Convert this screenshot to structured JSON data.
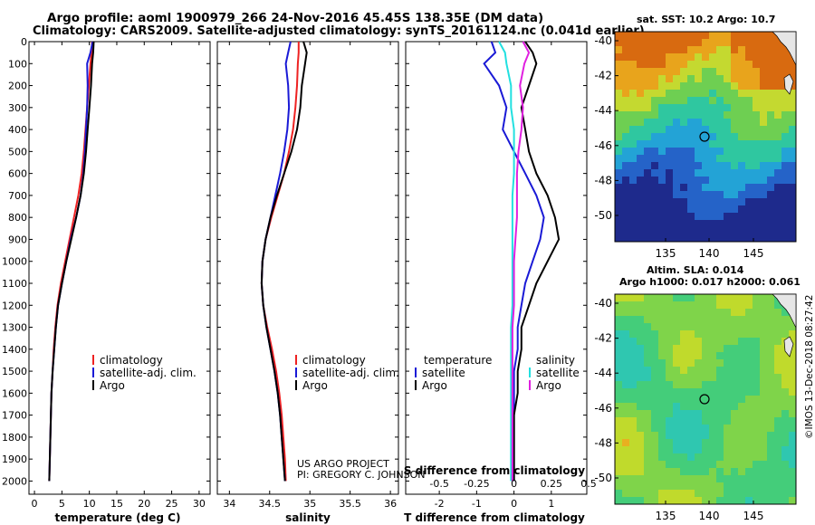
{
  "header": {
    "line1": "Argo profile: aoml 1900979_266 24-Nov-2016 45.45S 138.35E (DM data)",
    "line2": "Climatology: CARS2009. Satellite-adjusted climatology: synTS_20161124.nc (0.041d earlier)"
  },
  "maps": {
    "sst_title": "sat. SST: 10.2 Argo: 10.7",
    "sla_title1": "Altim. SLA: 0.014",
    "sla_title2": "Argo h1000: 0.017 h2000: 0.061",
    "side_credit": "©IMOS 13-Dec-2018 08:27:42",
    "lon_ticks": [
      "135",
      "140",
      "145"
    ],
    "lat_ticks": [
      "-40",
      "-42",
      "-44",
      "-46",
      "-48",
      "-50"
    ],
    "sst_ramp": [
      "#1e2a8c",
      "#2563c8",
      "#23a3d6",
      "#2fc7a0",
      "#6ecf52",
      "#c4d930",
      "#e8a41c",
      "#d86a10"
    ],
    "sla_ramp": [
      "#2fc7b0",
      "#44cd7a",
      "#7fd44a",
      "#c0da2c",
      "#e8b020",
      "#e06818"
    ]
  },
  "credits": {
    "line1": "US ARGO PROJECT",
    "line2": "PI: GREGORY C. JOHNSON"
  },
  "colors": {
    "climatology": "#ee2222",
    "satellite": "#1a1ad6",
    "argo": "#000000",
    "sal_satellite": "#22e0e0",
    "sal_argo": "#e020e0"
  },
  "chart_data": [
    {
      "type": "line",
      "id": "temperature",
      "xlabel": "temperature (deg C)",
      "ylabel": "",
      "xlim": [
        -1,
        32
      ],
      "ylim": [
        2060,
        0
      ],
      "xticks": [
        "0",
        "5",
        "10",
        "15",
        "20",
        "25",
        "30"
      ],
      "yticks": [
        "0",
        "100",
        "200",
        "300",
        "400",
        "500",
        "600",
        "700",
        "800",
        "900",
        "1000",
        "1100",
        "1200",
        "1300",
        "1400",
        "1500",
        "1600",
        "1700",
        "1800",
        "1900",
        "2000"
      ],
      "legend": [
        "climatology",
        "satellite-adj. clim.",
        "Argo"
      ],
      "depth": [
        0,
        50,
        100,
        200,
        300,
        400,
        500,
        600,
        700,
        800,
        900,
        1000,
        1100,
        1200,
        1300,
        1400,
        1500,
        1600,
        1700,
        1800,
        1900,
        2000
      ],
      "series": [
        {
          "name": "climatology",
          "values": [
            10.5,
            10.4,
            10.2,
            9.9,
            9.6,
            9.3,
            9.0,
            8.6,
            8.0,
            7.2,
            6.4,
            5.6,
            4.8,
            4.2,
            3.8,
            3.5,
            3.3,
            3.1,
            3.0,
            2.9,
            2.8,
            2.7
          ]
        },
        {
          "name": "satellite-adj. clim.",
          "values": [
            10.6,
            10.2,
            9.6,
            9.7,
            9.6,
            9.4,
            9.2,
            8.9,
            8.4,
            7.6,
            6.6,
            5.8,
            5.0,
            4.3,
            3.9,
            3.6,
            3.3,
            3.1,
            3.0,
            2.9,
            2.8,
            2.7
          ]
        },
        {
          "name": "Argo",
          "values": [
            10.8,
            10.7,
            10.5,
            10.3,
            10.0,
            9.7,
            9.4,
            9.0,
            8.4,
            7.6,
            6.7,
            5.8,
            5.0,
            4.3,
            3.9,
            3.6,
            3.3,
            3.1,
            3.0,
            2.9,
            2.8,
            2.7
          ]
        }
      ]
    },
    {
      "type": "line",
      "id": "salinity",
      "xlabel": "salinity",
      "ylabel": "",
      "xlim": [
        33.85,
        36.1
      ],
      "ylim": [
        2060,
        0
      ],
      "xticks": [
        "34",
        "34.5",
        "35",
        "35.5",
        "36"
      ],
      "legend": [
        "climatology",
        "satellite-adj. clim.",
        "Argo"
      ],
      "depth": [
        0,
        50,
        100,
        200,
        300,
        400,
        500,
        600,
        700,
        800,
        900,
        1000,
        1100,
        1200,
        1300,
        1400,
        1500,
        1600,
        1700,
        1800,
        1900,
        2000
      ],
      "series": [
        {
          "name": "climatology",
          "values": [
            34.86,
            34.86,
            34.85,
            34.84,
            34.82,
            34.79,
            34.74,
            34.68,
            34.6,
            34.52,
            34.45,
            34.41,
            34.4,
            34.42,
            34.47,
            34.53,
            34.58,
            34.62,
            34.65,
            34.67,
            34.69,
            34.7
          ]
        },
        {
          "name": "satellite-adj. clim.",
          "values": [
            34.76,
            34.73,
            34.7,
            34.73,
            34.74,
            34.72,
            34.68,
            34.63,
            34.57,
            34.51,
            34.45,
            34.41,
            34.4,
            34.42,
            34.46,
            34.51,
            34.56,
            34.6,
            34.63,
            34.65,
            34.67,
            34.69
          ]
        },
        {
          "name": "Argo",
          "values": [
            34.92,
            34.96,
            34.94,
            34.9,
            34.88,
            34.84,
            34.77,
            34.68,
            34.59,
            34.51,
            34.45,
            34.41,
            34.4,
            34.42,
            34.46,
            34.51,
            34.56,
            34.6,
            34.63,
            34.65,
            34.67,
            34.69
          ]
        }
      ]
    },
    {
      "type": "line",
      "id": "difference",
      "xlabel": "T difference from climatology",
      "xlabel_top": "S difference from climatology",
      "xlim": [
        -2.9,
        1.95
      ],
      "ylim": [
        2060,
        0
      ],
      "xticks": [
        "-2",
        "-1",
        "0",
        "1"
      ],
      "xticks_s": [
        "-0.5",
        "-0.25",
        "0",
        "0.25",
        "0.5"
      ],
      "s_scale": 4,
      "legend_titles": [
        "temperature",
        "salinity"
      ],
      "legend": [
        "satellite",
        "Argo",
        "satellite",
        "Argo"
      ],
      "depth": [
        0,
        50,
        100,
        200,
        300,
        400,
        500,
        600,
        700,
        800,
        900,
        1000,
        1100,
        1200,
        1300,
        1400,
        1500,
        1600,
        1700,
        1800,
        1900,
        2000
      ],
      "series": [
        {
          "name": "T satellite",
          "values": [
            -0.6,
            -0.5,
            -0.8,
            -0.4,
            -0.2,
            -0.3,
            0.0,
            0.3,
            0.6,
            0.8,
            0.7,
            0.5,
            0.3,
            0.2,
            0.1,
            0.1,
            0.0,
            0.0,
            0.0,
            0.0,
            0.0,
            0.0
          ]
        },
        {
          "name": "T Argo",
          "values": [
            0.3,
            0.5,
            0.6,
            0.4,
            0.2,
            0.3,
            0.4,
            0.6,
            0.9,
            1.1,
            1.2,
            0.9,
            0.6,
            0.4,
            0.2,
            0.2,
            0.1,
            0.1,
            0.0,
            0.0,
            0.0,
            0.0
          ]
        },
        {
          "name": "S satellite",
          "values": [
            -0.1,
            -0.06,
            -0.05,
            -0.02,
            -0.02,
            0.0,
            0.0,
            0.0,
            -0.01,
            -0.01,
            -0.01,
            -0.01,
            -0.01,
            -0.01,
            -0.02,
            -0.02,
            -0.02,
            -0.02,
            -0.02,
            -0.02,
            -0.02,
            -0.02
          ]
        },
        {
          "name": "S Argo",
          "values": [
            0.06,
            0.1,
            0.07,
            0.04,
            0.06,
            0.05,
            0.03,
            0.02,
            0.02,
            0.02,
            0.01,
            0.0,
            0.0,
            0.0,
            -0.01,
            -0.01,
            -0.01,
            -0.01,
            -0.01,
            -0.01,
            -0.01,
            -0.01
          ]
        }
      ]
    }
  ]
}
